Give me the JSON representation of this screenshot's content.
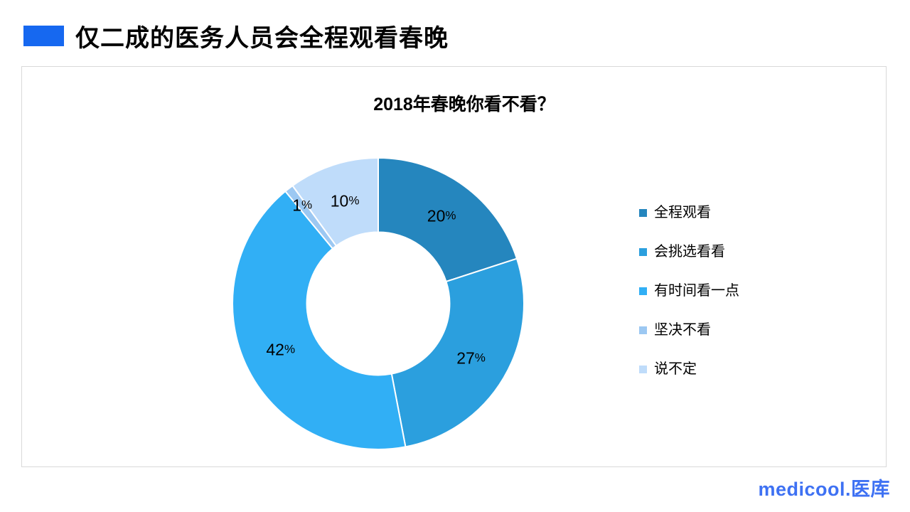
{
  "header": {
    "title": "仅二成的医务人员会全程观看春晚"
  },
  "colors": {
    "header_accent": "#1668f0",
    "panel_border": "#d9d9d9",
    "label_text": "#000000"
  },
  "logo": {
    "en": "medicool",
    "dot": ".",
    "cn": "医库",
    "color": "#3e71f3"
  },
  "chart_data": {
    "type": "pie",
    "subtype": "donut",
    "title": "2018年春晚你看不看？",
    "categories": [
      "全程观看",
      "会挑选看看",
      "有时间看一点",
      "坚决不看",
      "说不定"
    ],
    "values": [
      20,
      27,
      42,
      1,
      10
    ],
    "data_labels": [
      "20%",
      "27%",
      "42%",
      "1%",
      "10%"
    ],
    "colors": [
      "#2586be",
      "#2b9fde",
      "#31aff5",
      "#9cc8f2",
      "#bfdcfa"
    ],
    "start_angle_deg": 0,
    "direction": "clockwise",
    "donut_hole_ratio": 0.49,
    "slice_border_color": "#ffffff",
    "legend_position": "right",
    "grid": false
  }
}
